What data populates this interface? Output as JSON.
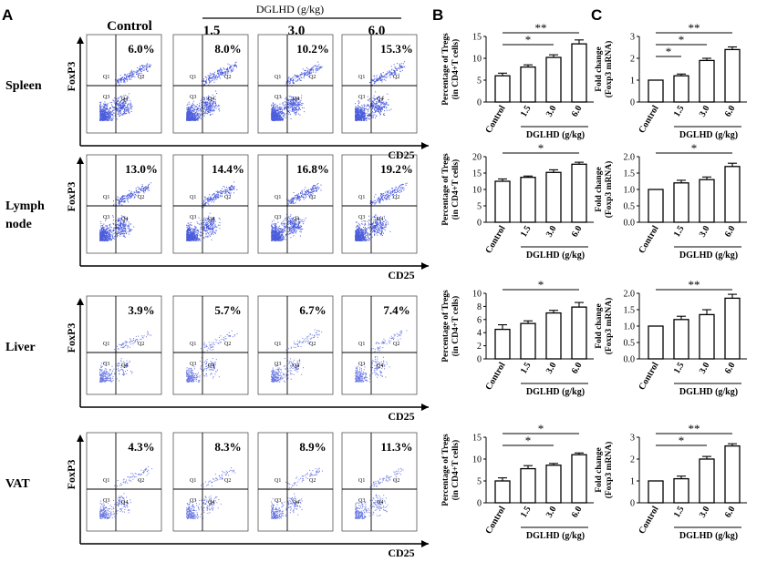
{
  "panel_labels": {
    "a": "A",
    "b": "B",
    "c": "C"
  },
  "flow": {
    "control_label": "Control",
    "group_label": "DGLHD (g/kg)",
    "doses": [
      "1.5",
      "3.0",
      "6.0"
    ],
    "y_axis_label": "FoxP3",
    "x_axis_label": "CD25",
    "quadrant_labels": [
      "Q1",
      "Q2",
      "Q3",
      "Q4"
    ],
    "colors": {
      "dots": "#2b3fd6",
      "axis": "#000000",
      "gate": "#000000"
    },
    "tissues": [
      {
        "name_lines": [
          "Spleen"
        ],
        "percentages": [
          "6.0%",
          "8.0%",
          "10.2%",
          "15.3%"
        ]
      },
      {
        "name_lines": [
          "Lymph",
          "node"
        ],
        "percentages": [
          "13.0%",
          "14.4%",
          "16.8%",
          "19.2%"
        ]
      },
      {
        "name_lines": [
          "Liver"
        ],
        "percentages": [
          "3.9%",
          "5.7%",
          "6.7%",
          "7.4%"
        ]
      },
      {
        "name_lines": [
          "VAT"
        ],
        "percentages": [
          "4.3%",
          "8.3%",
          "8.9%",
          "11.3%"
        ]
      }
    ]
  },
  "chart_data": [
    {
      "id": "B-spleen",
      "type": "bar",
      "categories": [
        "Control",
        "1.5",
        "3.0",
        "6.0"
      ],
      "values": [
        6.0,
        8.0,
        10.2,
        13.3
      ],
      "errors": [
        0.6,
        0.5,
        0.6,
        0.9
      ],
      "ylim": [
        0,
        15
      ],
      "yticks": [
        0,
        5,
        10,
        15
      ],
      "ylabel": [
        "Percentage of Tregs",
        "(in CD4+T cells)"
      ],
      "xlabel": "DGLHD (g/kg)",
      "sig": [
        {
          "from": 0,
          "to": 3,
          "label": "**"
        },
        {
          "from": 0,
          "to": 2,
          "label": "*"
        }
      ]
    },
    {
      "id": "B-lymph",
      "type": "bar",
      "categories": [
        "Control",
        "1.5",
        "3.0",
        "6.0"
      ],
      "values": [
        12.5,
        13.7,
        15.2,
        17.7
      ],
      "errors": [
        0.7,
        0.4,
        0.8,
        0.6
      ],
      "ylim": [
        0,
        20
      ],
      "yticks": [
        0,
        5,
        10,
        15,
        20
      ],
      "ylabel": [
        "Percentage of Tregs",
        "(in CD4+T cells)"
      ],
      "xlabel": "DGLHD (g/kg)",
      "sig": [
        {
          "from": 0,
          "to": 3,
          "label": "*"
        }
      ]
    },
    {
      "id": "B-liver",
      "type": "bar",
      "categories": [
        "Control",
        "1.5",
        "3.0",
        "6.0"
      ],
      "values": [
        4.5,
        5.4,
        7.0,
        7.9
      ],
      "errors": [
        0.7,
        0.4,
        0.4,
        0.7
      ],
      "ylim": [
        0,
        10
      ],
      "yticks": [
        0,
        2,
        4,
        6,
        8,
        10
      ],
      "ylabel": [
        "Percentage of Tregs",
        "(in CD4+T cells)"
      ],
      "xlabel": "DGLHD (g/kg)",
      "sig": [
        {
          "from": 0,
          "to": 3,
          "label": "*"
        }
      ]
    },
    {
      "id": "B-vat",
      "type": "bar",
      "categories": [
        "Control",
        "1.5",
        "3.0",
        "6.0"
      ],
      "values": [
        5.0,
        7.8,
        8.6,
        11.0
      ],
      "errors": [
        0.7,
        0.7,
        0.4,
        0.4
      ],
      "ylim": [
        0,
        15
      ],
      "yticks": [
        0,
        5,
        10,
        15
      ],
      "ylabel": [
        "Percentage of Tregs",
        "(in CD4+T cells)"
      ],
      "xlabel": "DGLHD (g/kg)",
      "sig": [
        {
          "from": 0,
          "to": 3,
          "label": "*"
        },
        {
          "from": 0,
          "to": 2,
          "label": "*"
        }
      ]
    },
    {
      "id": "C-spleen",
      "type": "bar",
      "categories": [
        "Control",
        "1.5",
        "3.0",
        "6.0"
      ],
      "values": [
        1.0,
        1.2,
        1.9,
        2.4
      ],
      "errors": [
        0.0,
        0.08,
        0.1,
        0.12
      ],
      "ylim": [
        0,
        3
      ],
      "yticks": [
        0,
        1,
        2,
        3
      ],
      "ylabel": [
        "Fold change",
        "(Foxp3 mRNA)"
      ],
      "xlabel": "DGLHD (g/kg)",
      "sig": [
        {
          "from": 0,
          "to": 3,
          "label": "**"
        },
        {
          "from": 0,
          "to": 2,
          "label": "*"
        },
        {
          "from": 0,
          "to": 1,
          "label": "*"
        }
      ]
    },
    {
      "id": "C-lymph",
      "type": "bar",
      "categories": [
        "Control",
        "1.5",
        "3.0",
        "6.0"
      ],
      "values": [
        1.0,
        1.2,
        1.3,
        1.7
      ],
      "errors": [
        0.0,
        0.08,
        0.08,
        0.1
      ],
      "ylim": [
        0,
        2.0
      ],
      "yticks": [
        "0.0",
        "0.5",
        "1.0",
        "1.5",
        "2.0"
      ],
      "ylabel": [
        "Fold change",
        "(Foxp3 mRNA)"
      ],
      "xlabel": "DGLHD (g/kg)",
      "sig": [
        {
          "from": 0,
          "to": 3,
          "label": "*"
        }
      ]
    },
    {
      "id": "C-liver",
      "type": "bar",
      "categories": [
        "Control",
        "1.5",
        "3.0",
        "6.0"
      ],
      "values": [
        1.0,
        1.2,
        1.35,
        1.85
      ],
      "errors": [
        0.0,
        0.1,
        0.15,
        0.12
      ],
      "ylim": [
        0,
        2.0
      ],
      "yticks": [
        "0.0",
        "0.5",
        "1.0",
        "1.5",
        "2.0"
      ],
      "ylabel": [
        "Fold change",
        "(Foxp3 mRNA)"
      ],
      "xlabel": "DGLHD (g/kg)",
      "sig": [
        {
          "from": 0,
          "to": 3,
          "label": "**"
        }
      ]
    },
    {
      "id": "C-vat",
      "type": "bar",
      "categories": [
        "Control",
        "1.5",
        "3.0",
        "6.0"
      ],
      "values": [
        1.0,
        1.1,
        2.0,
        2.6
      ],
      "errors": [
        0.0,
        0.12,
        0.12,
        0.1
      ],
      "ylim": [
        0,
        3
      ],
      "yticks": [
        0,
        1,
        2,
        3
      ],
      "ylabel": [
        "Fold change",
        "(Foxp3 mRNA)"
      ],
      "xlabel": "DGLHD (g/kg)",
      "sig": [
        {
          "from": 0,
          "to": 3,
          "label": "**"
        },
        {
          "from": 0,
          "to": 2,
          "label": "*"
        }
      ]
    }
  ]
}
